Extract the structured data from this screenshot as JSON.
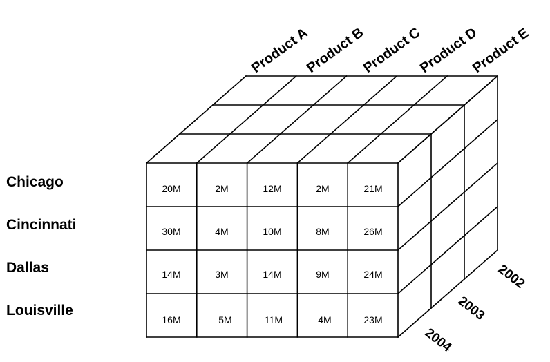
{
  "products": [
    "Product A",
    "Product B",
    "Product C",
    "Product D",
    "Product E"
  ],
  "cities": [
    "Chicago",
    "Cincinnati",
    "Dallas",
    "Louisville"
  ],
  "years": [
    "2002",
    "2003",
    "2004"
  ],
  "values": [
    [
      "20M",
      "2M",
      "12M",
      "2M",
      "21M"
    ],
    [
      "30M",
      "4M",
      "10M",
      "8M",
      "26M"
    ],
    [
      "14M",
      "3M",
      "14M",
      "9M",
      "24M"
    ],
    [
      "16M",
      "5M",
      "11M",
      "4M",
      "23M"
    ]
  ]
}
